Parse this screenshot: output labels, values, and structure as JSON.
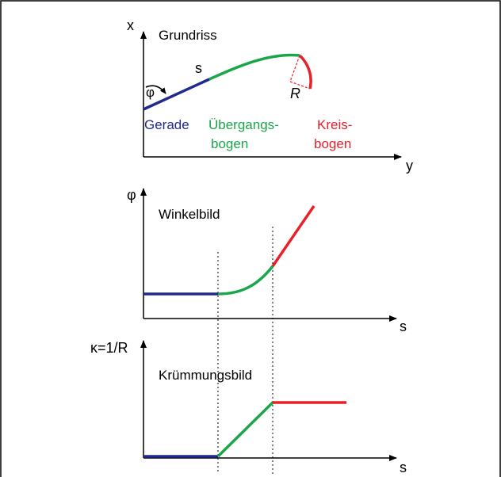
{
  "colors": {
    "gerade": "#1f2a8c",
    "uebergang": "#1aa64a",
    "kreis": "#e8202a",
    "axis": "#000000",
    "frame": "#000000"
  },
  "top": {
    "title": "Grundriss",
    "axis_x": "x",
    "axis_y": "y",
    "label_s": "s",
    "label_phi": "φ",
    "label_R": "R",
    "gerade": "Gerade",
    "uebergang_line1": "Übergangs-",
    "uebergang_line2": "bogen",
    "kreis_line1": "Kreis-",
    "kreis_line2": "bogen"
  },
  "middle": {
    "title": "Winkelbild",
    "axis_y": "φ",
    "axis_x": "s"
  },
  "bottom": {
    "title": "Krümmungsbild",
    "axis_y": "κ=1/R",
    "axis_x": "s"
  }
}
